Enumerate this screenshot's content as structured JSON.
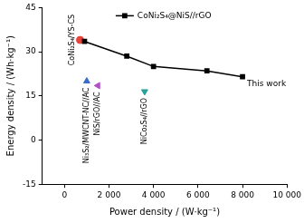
{
  "chart_data": {
    "type": "line",
    "xlabel": "Power density / (W·kg⁻¹)",
    "ylabel": "Energy density / (Wh·kg⁻¹)",
    "x": [
      900,
      2800,
      4000,
      6400,
      8000
    ],
    "series": [
      {
        "name": "CoNi₂S₄@NiS//rGO",
        "color": "#000000",
        "marker": "square",
        "line_style": "solid",
        "values": [
          33.5,
          28.5,
          25,
          23.5,
          21.5
        ]
      }
    ],
    "annotations": [
      {
        "text": "CoNi₂S₄/YS-CS",
        "x": 700,
        "y": 34,
        "color": "#e8433b",
        "marker": "circle"
      },
      {
        "text": "Ni₃S₂/MWCNT-NC//AC",
        "x": 1000,
        "y": 20,
        "color": "#3b6bc8",
        "marker": "triangle"
      },
      {
        "text": "NiS/rGO//AC",
        "x": 1500,
        "y": 18.5,
        "color": "#b04fc8",
        "marker": "triangle-left"
      },
      {
        "text": "NiCo₂S₄//rGO",
        "x": 3600,
        "y": 16.5,
        "color": "#2aa198",
        "marker": "triangle-down"
      },
      {
        "text": "This work",
        "x": 8000,
        "y": 21.5
      }
    ],
    "xlim": [
      -1000,
      10000
    ],
    "xticks": [
      0,
      {
        "value": 2000,
        "label": "2 000"
      },
      {
        "value": 4000,
        "label": "4 000"
      },
      {
        "value": 6000,
        "label": "6 000"
      },
      {
        "value": 8000,
        "label": "8 000"
      },
      {
        "value": 10000,
        "label": "10 000"
      }
    ],
    "ylim": [
      -15,
      45
    ],
    "yticks": [
      -15,
      0,
      15,
      30,
      45
    ],
    "grid": false,
    "legend": "top"
  }
}
